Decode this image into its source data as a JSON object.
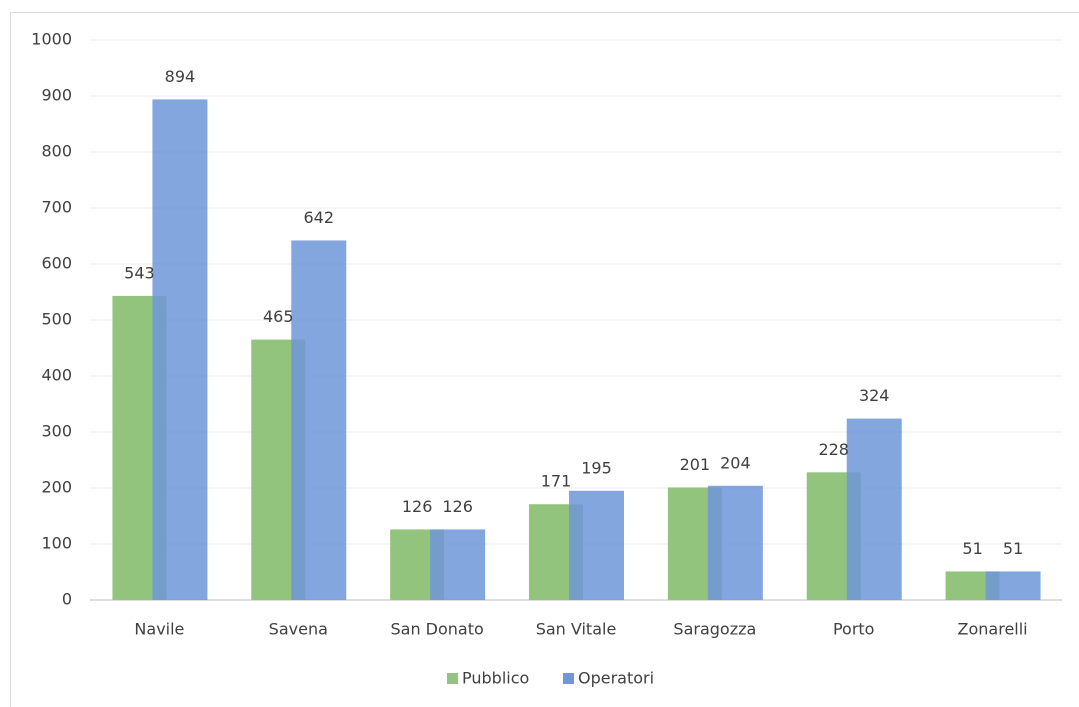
{
  "chart_data": {
    "type": "bar",
    "categories": [
      "Navile",
      "Savena",
      "San Donato",
      "San Vitale",
      "Saragozza",
      "Porto",
      "Zonarelli"
    ],
    "series": [
      {
        "name": "Pubblico",
        "color": "#93c47d",
        "values": [
          543,
          465,
          126,
          171,
          201,
          228,
          51
        ]
      },
      {
        "name": "Operatori",
        "color": "#6f96d8",
        "values": [
          894,
          642,
          126,
          195,
          204,
          324,
          51
        ]
      }
    ],
    "ylim": [
      0,
      1000
    ],
    "yticks": [
      0,
      100,
      200,
      300,
      400,
      500,
      600,
      700,
      800,
      900,
      1000
    ],
    "grid": true,
    "legend": "bottom"
  }
}
